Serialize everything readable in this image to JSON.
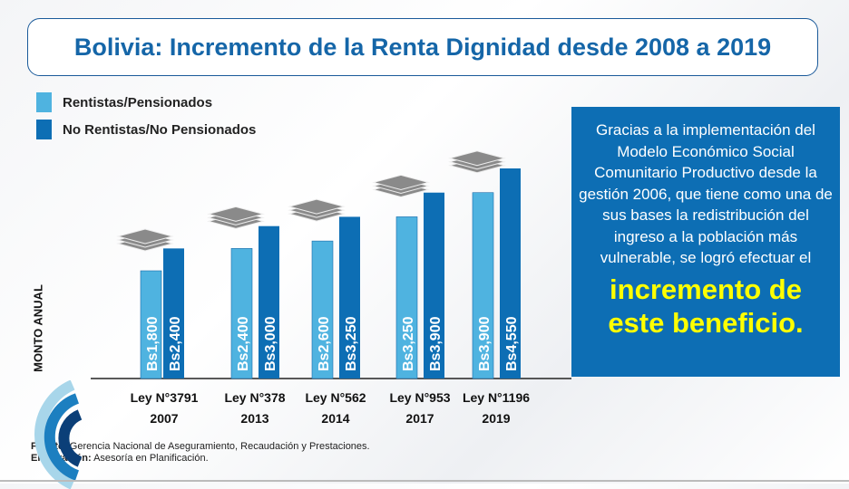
{
  "title": "Bolivia: Incremento de la Renta Dignidad desde 2008 a 2019",
  "panel": {
    "text": "Gracias a la implementación del Modelo Económico Social Comunitario Productivo desde la gestión 2006, que tiene como una de sus bases la redistribución del ingreso a la población más vulnerable, se logró efectuar el",
    "highlight": "incremento de este beneficio."
  },
  "footer": {
    "fuente_label": "Fuente:",
    "fuente": "Gerencia Nacional de Aseguramiento, Recaudación y Prestaciones.",
    "elaboracion_label": "Elaboración:",
    "elaboracion": "Asesoría en Planificación."
  },
  "colors": {
    "light": "#4fb3e0",
    "dark": "#0d6eb4",
    "title": "#1566a8",
    "highlight": "#ffff00"
  },
  "chart_data": {
    "type": "bar",
    "ylabel": "MONTO ANUAL",
    "categories": [
      [
        "Ley N°3791",
        "2007"
      ],
      [
        "Ley N°378",
        "2013"
      ],
      [
        "Ley N°562",
        "2014"
      ],
      [
        "Ley N°953",
        "2017"
      ],
      [
        "Ley N°1196",
        "2019"
      ]
    ],
    "series": [
      {
        "name": "Rentistas/Pensionados",
        "values": [
          1800,
          2400,
          2600,
          3250,
          3900
        ],
        "labels": [
          "Bs1,800",
          "Bs2,400",
          "Bs2,600",
          "Bs3,250",
          "Bs3,900"
        ]
      },
      {
        "name": "No Rentistas/No Pensionados",
        "values": [
          2400,
          3000,
          3250,
          3900,
          4550
        ],
        "labels": [
          "Bs2,400",
          "Bs3,000",
          "Bs3,250",
          "Bs3,900",
          "Bs4,550"
        ]
      }
    ],
    "grid": false,
    "legend": "top-left"
  }
}
